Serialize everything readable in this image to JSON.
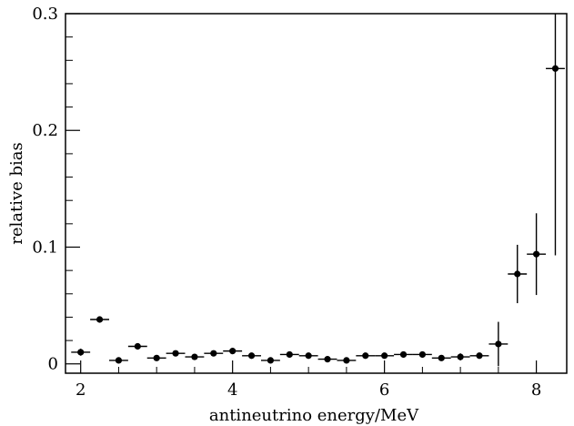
{
  "chart_data": {
    "type": "scatter",
    "title": "",
    "xlabel": "antineutrino energy/MeV",
    "ylabel": "relative bias",
    "xlim": [
      1.8,
      8.4
    ],
    "ylim": [
      -0.008,
      0.3
    ],
    "x_ticks": [
      {
        "value": 2,
        "label": "2"
      },
      {
        "value": 4,
        "label": "4"
      },
      {
        "value": 6,
        "label": "6"
      },
      {
        "value": 8,
        "label": "8"
      }
    ],
    "y_ticks": [
      {
        "value": 0,
        "label": "0"
      },
      {
        "value": 0.1,
        "label": "0.1"
      },
      {
        "value": 0.2,
        "label": "0.2"
      },
      {
        "value": 0.3,
        "label": "0.3"
      }
    ],
    "grid": false,
    "series": [
      {
        "color": "#000000",
        "x_half_width": 0.125,
        "points": [
          {
            "x": 2.0,
            "y": 0.01,
            "yerr": 0.003
          },
          {
            "x": 2.25,
            "y": 0.038,
            "yerr": 0.0
          },
          {
            "x": 2.5,
            "y": 0.003,
            "yerr": 0.0
          },
          {
            "x": 2.75,
            "y": 0.015,
            "yerr": 0.0
          },
          {
            "x": 3.0,
            "y": 0.005,
            "yerr": 0.0
          },
          {
            "x": 3.25,
            "y": 0.009,
            "yerr": 0.0
          },
          {
            "x": 3.5,
            "y": 0.006,
            "yerr": 0.0
          },
          {
            "x": 3.75,
            "y": 0.009,
            "yerr": 0.0
          },
          {
            "x": 4.0,
            "y": 0.011,
            "yerr": 0.0
          },
          {
            "x": 4.25,
            "y": 0.007,
            "yerr": 0.0
          },
          {
            "x": 4.5,
            "y": 0.003,
            "yerr": 0.0
          },
          {
            "x": 4.75,
            "y": 0.008,
            "yerr": 0.0
          },
          {
            "x": 5.0,
            "y": 0.007,
            "yerr": 0.0
          },
          {
            "x": 5.25,
            "y": 0.004,
            "yerr": 0.0
          },
          {
            "x": 5.5,
            "y": 0.003,
            "yerr": 0.0
          },
          {
            "x": 5.75,
            "y": 0.007,
            "yerr": 0.0
          },
          {
            "x": 6.0,
            "y": 0.007,
            "yerr": 0.0
          },
          {
            "x": 6.25,
            "y": 0.008,
            "yerr": 0.0
          },
          {
            "x": 6.5,
            "y": 0.008,
            "yerr": 0.0
          },
          {
            "x": 6.75,
            "y": 0.005,
            "yerr": 0.0
          },
          {
            "x": 7.0,
            "y": 0.006,
            "yerr": 0.003
          },
          {
            "x": 7.25,
            "y": 0.007,
            "yerr": 0.002
          },
          {
            "x": 7.5,
            "y": 0.017,
            "yerr": 0.019
          },
          {
            "x": 7.75,
            "y": 0.077,
            "yerr": 0.025
          },
          {
            "x": 8.0,
            "y": 0.094,
            "yerr": 0.035
          },
          {
            "x": 8.25,
            "y": 0.253,
            "yerr": 0.16
          }
        ]
      }
    ]
  }
}
